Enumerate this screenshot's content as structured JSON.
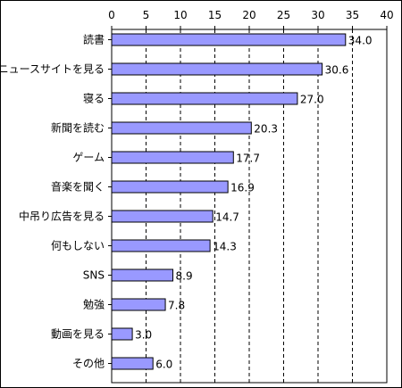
{
  "chart_data": {
    "type": "bar",
    "orientation": "horizontal",
    "categories": [
      "読書",
      "ニュースサイトを見る",
      "寝る",
      "新聞を読む",
      "ゲーム",
      "音楽を聞く",
      "中吊り広告を見る",
      "何もしない",
      "SNS",
      "勉強",
      "動画を見る",
      "その他"
    ],
    "values": [
      34.0,
      30.6,
      27.0,
      20.3,
      17.7,
      16.9,
      14.7,
      14.3,
      8.9,
      7.8,
      3.0,
      6.0
    ],
    "value_labels": [
      "34.0",
      "30.6",
      "27.0",
      "20.3",
      "17.7",
      "16.9",
      "14.7",
      "14.3",
      "8.9",
      "7.8",
      "3.0",
      "6.0"
    ],
    "x_ticks": [
      0,
      5,
      10,
      15,
      20,
      25,
      30,
      35,
      40
    ],
    "xlim": [
      0,
      40
    ],
    "xaxis_position": "top",
    "grid": "vertical dashed",
    "bar_color": "#9999ff",
    "bar_edge_color": "#000000"
  }
}
